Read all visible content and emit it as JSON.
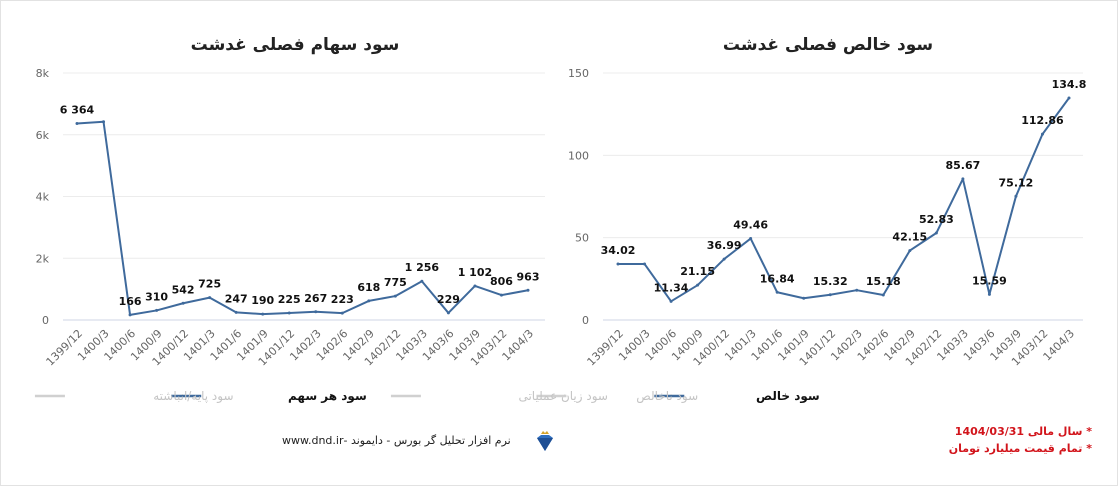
{
  "chart_data": [
    {
      "type": "line",
      "title": "سود سهام فصلی غدشت",
      "categories": [
        "1399/12",
        "1400/3",
        "1400/6",
        "1400/9",
        "1400/12",
        "1401/3",
        "1401/6",
        "1401/9",
        "1401/12",
        "1402/3",
        "1402/6",
        "1402/9",
        "1402/12",
        "1403/3",
        "1403/6",
        "1403/9",
        "1403/12",
        "1404/3"
      ],
      "ylim": [
        0,
        8000
      ],
      "yticks": [
        "0",
        "2k",
        "4k",
        "6k",
        "8k"
      ],
      "grid": true,
      "legend_position": "bottom",
      "series": [
        {
          "name": "سود هر سهم",
          "color": "#3f6a9c",
          "visible": true,
          "values": [
            6364,
            6420,
            166,
            310,
            542,
            725,
            247,
            190,
            225,
            267,
            223,
            618,
            775,
            1256,
            229,
            1102,
            806,
            963
          ],
          "labels": [
            "6 364",
            null,
            "166",
            "310",
            "542",
            "725",
            "247",
            "190",
            "225",
            "267",
            "223",
            "618",
            "775",
            "1 256",
            "229",
            "1 102",
            "806",
            "963"
          ]
        },
        {
          "name": "سود پایه/انباشته",
          "color": "#cccccc",
          "visible": false
        }
      ]
    },
    {
      "type": "line",
      "title": "سود خالص فصلی غدشت",
      "categories": [
        "1399/12",
        "1400/3",
        "1400/6",
        "1400/9",
        "1400/12",
        "1401/3",
        "1401/6",
        "1401/9",
        "1401/12",
        "1402/3",
        "1402/6",
        "1402/9",
        "1402/12",
        "1403/3",
        "1403/6",
        "1403/9",
        "1403/12",
        "1404/3"
      ],
      "ylim": [
        0,
        150
      ],
      "yticks": [
        "0",
        "50",
        "100",
        "150"
      ],
      "grid": true,
      "legend_position": "bottom",
      "series": [
        {
          "name": "سود خالص",
          "color": "#3f6a9c",
          "visible": true,
          "values": [
            34.02,
            34.02,
            11.34,
            21.15,
            36.99,
            49.46,
            16.84,
            13.2,
            15.32,
            18.1,
            15.18,
            42.15,
            52.83,
            85.67,
            15.59,
            75.12,
            112.86,
            134.8
          ],
          "labels": [
            "34.02",
            null,
            "11.34",
            "21.15",
            "36.99",
            "49.46",
            "16.84",
            null,
            "15.32",
            null,
            "15.18",
            "42.15",
            "52.83",
            "85.67",
            "15.59",
            "75.12",
            "112.86",
            "134.8"
          ]
        },
        {
          "name": "سود ناخالص",
          "color": "#cccccc",
          "visible": false
        },
        {
          "name": "سود زیان عملیاتی",
          "color": "#cccccc",
          "visible": false
        }
      ]
    }
  ],
  "footer": {
    "software": "نرم افزار تحلیل گر بورس - دایموند -www.dnd.ir",
    "notes": [
      "* سال مالی 1404/03/31",
      "* تمام قیمت میلیارد تومان"
    ]
  }
}
